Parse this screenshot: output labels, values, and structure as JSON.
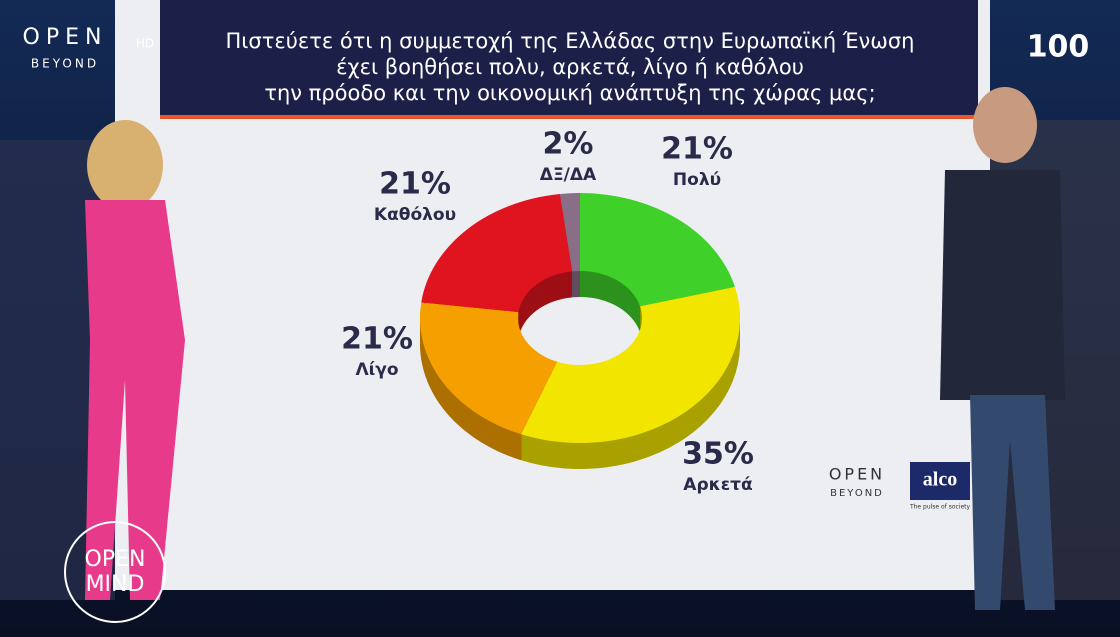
{
  "chart_data": {
    "type": "pie",
    "donut": true,
    "title": [
      "Πιστεύετε ότι η συμμετοχή της Ελλάδας στην Ευρωπαϊκή Ένωση",
      "έχει βοηθήσει πολυ, αρκετά, λίγο ή καθόλου",
      "την πρόοδο και την οικονομική ανάπτυξη της χώρας μας;"
    ],
    "categories": [
      "Πολύ",
      "Αρκετά",
      "Λίγο",
      "Καθόλου",
      "ΔΞ/ΔΑ"
    ],
    "values": [
      21,
      35,
      21,
      21,
      2
    ],
    "value_labels": [
      "21%",
      "35%",
      "21%",
      "21%",
      "2%"
    ],
    "colors": [
      "#3fd12a",
      "#f2e600",
      "#f5a000",
      "#e0141e",
      "#8a6e88"
    ]
  },
  "overlay": {
    "channel": "OPEN",
    "quality": "HD",
    "channel_sub": "BEYOND",
    "counter": "100",
    "show": [
      "OPEN",
      "MIND"
    ],
    "source_channel": "OPEN",
    "source_channel_sub": "BEYOND",
    "pollster": "alco",
    "pollster_tagline": "The pulse of society"
  }
}
